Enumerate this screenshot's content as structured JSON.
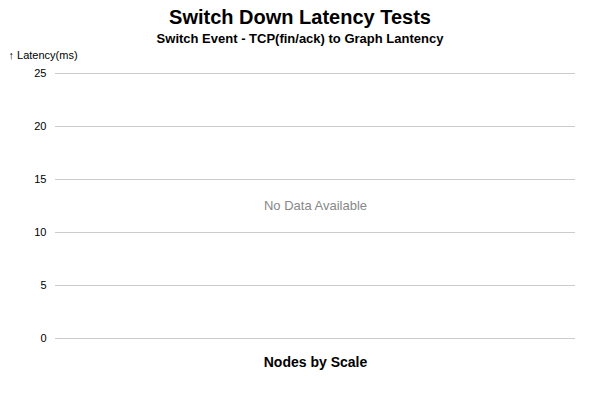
{
  "chart_data": {
    "type": "bar",
    "title": "Switch Down Latency Tests",
    "subtitle": "Switch Event - TCP(fin/ack) to Graph Lantency",
    "xlabel": "Nodes by Scale",
    "ylabel": "Latency(ms)",
    "annotations": [
      "No Data Available"
    ],
    "categories": [],
    "values": [],
    "ylim": [
      0,
      25
    ],
    "yticks": [
      0,
      5,
      10,
      15,
      20,
      25
    ],
    "grid": true,
    "tick_labels": "y"
  }
}
